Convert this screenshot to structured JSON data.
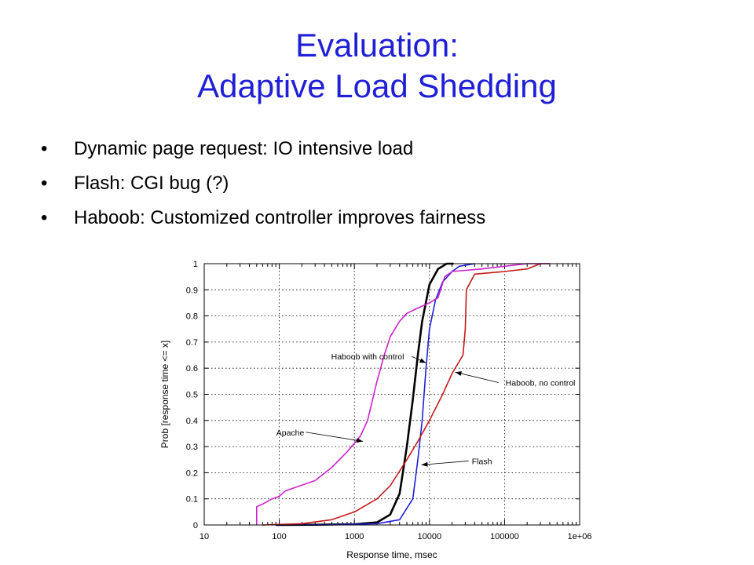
{
  "slide": {
    "title_line1": "Evaluation:",
    "title_line2": "Adaptive Load Shedding",
    "bullets": [
      "Dynamic page request: IO intensive load",
      "Flash: CGI bug (?)",
      "Haboob: Customized controller improves fairness"
    ],
    "bullet_glyph": "•"
  },
  "chart_data": {
    "type": "line",
    "xlabel": "Response time, msec",
    "ylabel": "Prob [response time <= x]",
    "x_scale": "log",
    "xlim": [
      10,
      1000000
    ],
    "ylim": [
      0,
      1
    ],
    "x_ticks": [
      "10",
      "100",
      "1000",
      "10000",
      "100000",
      "1e+06"
    ],
    "y_ticks": [
      "0",
      "0.1",
      "0.2",
      "0.3",
      "0.4",
      "0.5",
      "0.6",
      "0.7",
      "0.8",
      "0.9",
      "1"
    ],
    "grid": true,
    "series": [
      {
        "name": "Haboob with control",
        "color": "#000000",
        "points": [
          [
            90,
            0
          ],
          [
            300,
            0.001
          ],
          [
            1000,
            0.003
          ],
          [
            2000,
            0.01
          ],
          [
            3000,
            0.04
          ],
          [
            4000,
            0.12
          ],
          [
            5000,
            0.3
          ],
          [
            6000,
            0.48
          ],
          [
            7000,
            0.65
          ],
          [
            8000,
            0.78
          ],
          [
            10000,
            0.92
          ],
          [
            13000,
            0.98
          ],
          [
            17000,
            1.0
          ],
          [
            21000,
            1.0
          ]
        ]
      },
      {
        "name": "Flash",
        "color": "#1f1fd6",
        "points": [
          [
            90,
            0
          ],
          [
            500,
            0.001
          ],
          [
            2000,
            0.005
          ],
          [
            4000,
            0.02
          ],
          [
            6000,
            0.1
          ],
          [
            7000,
            0.25
          ],
          [
            8000,
            0.4
          ],
          [
            9000,
            0.6
          ],
          [
            10000,
            0.75
          ],
          [
            12000,
            0.86
          ],
          [
            15000,
            0.93
          ],
          [
            20000,
            0.97
          ],
          [
            25000,
            0.99
          ],
          [
            40000,
            1.0
          ]
        ]
      },
      {
        "name": "Haboob, no control",
        "color": "#c41a1a",
        "points": [
          [
            60,
            0
          ],
          [
            200,
            0.005
          ],
          [
            500,
            0.02
          ],
          [
            1000,
            0.05
          ],
          [
            2000,
            0.1
          ],
          [
            3000,
            0.15
          ],
          [
            5000,
            0.25
          ],
          [
            7000,
            0.32
          ],
          [
            10000,
            0.4
          ],
          [
            15000,
            0.5
          ],
          [
            20000,
            0.58
          ],
          [
            28000,
            0.65
          ],
          [
            30000,
            0.75
          ],
          [
            31000,
            0.9
          ],
          [
            40000,
            0.96
          ],
          [
            100000,
            0.97
          ],
          [
            200000,
            0.98
          ],
          [
            300000,
            1.0
          ],
          [
            400000,
            1.0
          ]
        ]
      },
      {
        "name": "Apache",
        "color": "#cc22cc",
        "points": [
          [
            50,
            0
          ],
          [
            50,
            0.07
          ],
          [
            60,
            0.08
          ],
          [
            80,
            0.1
          ],
          [
            100,
            0.11
          ],
          [
            120,
            0.13
          ],
          [
            150,
            0.14
          ],
          [
            300,
            0.17
          ],
          [
            500,
            0.22
          ],
          [
            800,
            0.28
          ],
          [
            1200,
            0.34
          ],
          [
            1500,
            0.4
          ],
          [
            2000,
            0.55
          ],
          [
            2500,
            0.65
          ],
          [
            3000,
            0.72
          ],
          [
            4000,
            0.78
          ],
          [
            5000,
            0.81
          ],
          [
            7000,
            0.83
          ],
          [
            10000,
            0.85
          ],
          [
            13000,
            0.87
          ],
          [
            16000,
            0.95
          ],
          [
            20000,
            0.97
          ],
          [
            50000,
            0.98
          ],
          [
            100000,
            0.99
          ],
          [
            200000,
            1.0
          ],
          [
            400000,
            1.0
          ]
        ]
      }
    ],
    "annotations": [
      {
        "text": "Haboob with control",
        "label_x": 1500,
        "label_y": 0.645,
        "arrow_x": 9000,
        "arrow_y": 0.62
      },
      {
        "text": "Haboob, no control",
        "label_x": 300000,
        "label_y": 0.545,
        "arrow_x": 22000,
        "arrow_y": 0.585
      },
      {
        "text": "Apache",
        "label_x": 140,
        "label_y": 0.355,
        "arrow_x": 1300,
        "arrow_y": 0.32
      },
      {
        "text": "Flash",
        "label_x": 50000,
        "label_y": 0.245,
        "arrow_x": 7800,
        "arrow_y": 0.23
      }
    ]
  }
}
